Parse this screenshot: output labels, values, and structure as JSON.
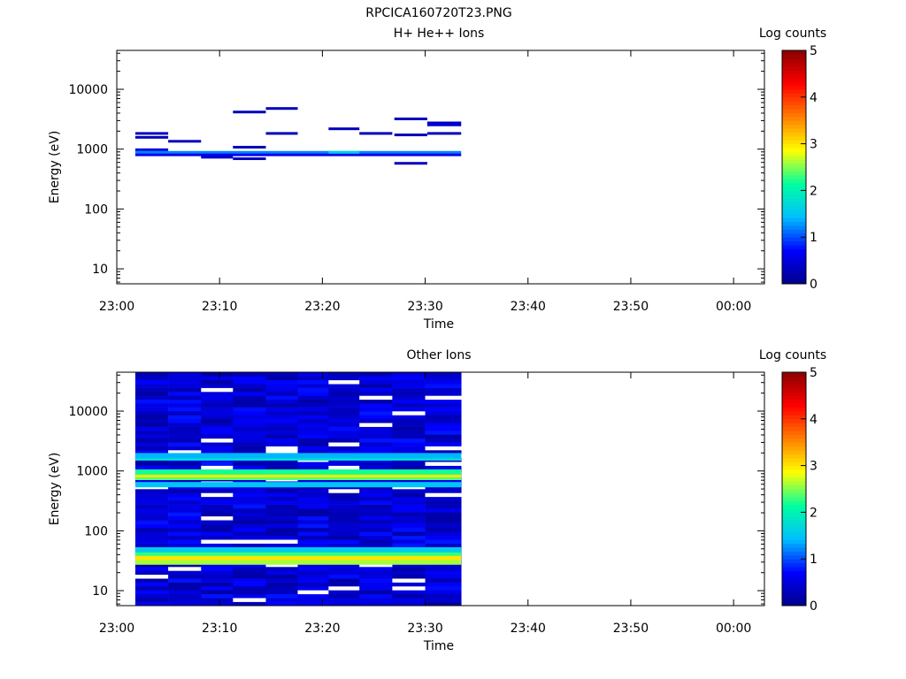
{
  "page_title": "RPCICA160720T23.PNG",
  "colorscale": {
    "stops": [
      "#00008b",
      "#0000ff",
      "#00bfff",
      "#00ffa0",
      "#ffff00",
      "#ff8000",
      "#ff0000",
      "#8b0000"
    ]
  },
  "chart_data": [
    {
      "type": "heatmap",
      "title": "H+ He++ Ions",
      "xlabel": "Time",
      "ylabel": "Energy (eV)",
      "x_tick_labels": [
        "23:00",
        "23:10",
        "23:20",
        "23:30",
        "23:40",
        "23:50",
        "00:00"
      ],
      "x_range_minutes": [
        0,
        63
      ],
      "y_tick_labels": [
        "10",
        "100",
        "1000",
        "10000"
      ],
      "y_log_range": [
        0.75,
        4.65
      ],
      "colorbar": {
        "label": "Log counts",
        "ticks": [
          "0",
          "1",
          "2",
          "3",
          "4",
          "5"
        ],
        "range": [
          0,
          5
        ]
      },
      "cells": [
        {
          "t0": 1.8,
          "t1": 5.0,
          "e": 1800,
          "v": 0.3
        },
        {
          "t0": 1.8,
          "t1": 5.0,
          "e": 1550,
          "v": 0.3
        },
        {
          "t0": 5.0,
          "t1": 8.2,
          "e": 1330,
          "v": 0.3
        },
        {
          "t0": 1.8,
          "t1": 5.0,
          "e": 960,
          "v": 0.5
        },
        {
          "t0": 1.8,
          "t1": 33.5,
          "e": 870,
          "v": 1.2
        },
        {
          "t0": 1.8,
          "t1": 33.5,
          "e": 790,
          "v": 0.6
        },
        {
          "t0": 20.6,
          "t1": 23.6,
          "e": 870,
          "v": 1.6
        },
        {
          "t0": 8.2,
          "t1": 11.3,
          "e": 720,
          "v": 0.4
        },
        {
          "t0": 11.3,
          "t1": 14.5,
          "e": 680,
          "v": 0.3
        },
        {
          "t0": 11.3,
          "t1": 14.5,
          "e": 4100,
          "v": 0.3
        },
        {
          "t0": 14.5,
          "t1": 17.6,
          "e": 4700,
          "v": 0.3
        },
        {
          "t0": 11.3,
          "t1": 14.5,
          "e": 1060,
          "v": 0.3
        },
        {
          "t0": 14.5,
          "t1": 17.6,
          "e": 1800,
          "v": 0.3
        },
        {
          "t0": 20.6,
          "t1": 23.6,
          "e": 2150,
          "v": 0.3
        },
        {
          "t0": 23.6,
          "t1": 26.8,
          "e": 1800,
          "v": 0.3
        },
        {
          "t0": 27.0,
          "t1": 30.2,
          "e": 3150,
          "v": 0.3
        },
        {
          "t0": 27.0,
          "t1": 30.2,
          "e": 1700,
          "v": 0.3
        },
        {
          "t0": 27.0,
          "t1": 30.2,
          "e": 570,
          "v": 0.3
        },
        {
          "t0": 30.2,
          "t1": 33.5,
          "e": 2700,
          "v": 0.4
        },
        {
          "t0": 30.2,
          "t1": 33.5,
          "e": 2500,
          "v": 0.4
        },
        {
          "t0": 30.2,
          "t1": 33.5,
          "e": 1800,
          "v": 0.3
        }
      ]
    },
    {
      "type": "heatmap",
      "title": "Other Ions",
      "xlabel": "Time",
      "ylabel": "Energy (eV)",
      "x_tick_labels": [
        "23:00",
        "23:10",
        "23:20",
        "23:30",
        "23:40",
        "23:50",
        "00:00"
      ],
      "x_range_minutes": [
        0,
        63
      ],
      "y_tick_labels": [
        "10",
        "100",
        "1000",
        "10000"
      ],
      "y_log_range": [
        0.75,
        4.65
      ],
      "colorbar": {
        "label": "Log counts",
        "ticks": [
          "0",
          "1",
          "2",
          "3",
          "4",
          "5"
        ],
        "range": [
          0,
          5
        ]
      },
      "time_columns": [
        1.8,
        5.0,
        8.2,
        11.3,
        14.5,
        17.6,
        20.6,
        23.6,
        26.8,
        30.0,
        33.5
      ],
      "energy_bands": [
        {
          "e": 30,
          "v": 2.6
        },
        {
          "e": 36,
          "v": 3.0
        },
        {
          "e": 42,
          "v": 2.3
        },
        {
          "e": 48,
          "v": 1.6
        },
        {
          "e": 780,
          "v": 2.4
        },
        {
          "e": 870,
          "v": 3.0
        },
        {
          "e": 960,
          "v": 2.2
        },
        {
          "e": 1650,
          "v": 1.8
        },
        {
          "e": 1800,
          "v": 1.4
        },
        {
          "e": 590,
          "v": 1.5
        }
      ],
      "background_level": 0.5
    }
  ]
}
